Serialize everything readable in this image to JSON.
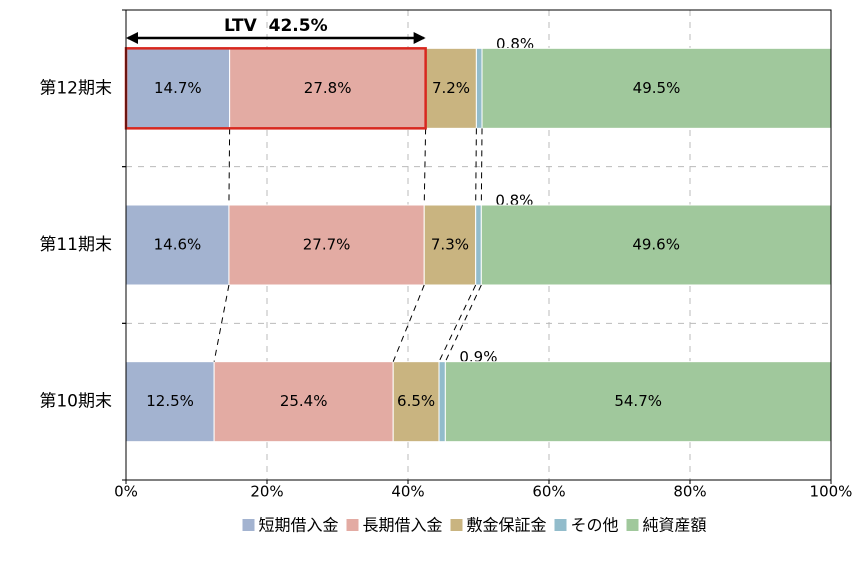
{
  "chart_data": {
    "type": "stacked_barh",
    "annotation": "LTV  42.5%",
    "categories": [
      "第12期末",
      "第11期末",
      "第10期末"
    ],
    "series": [
      {
        "name": "短期借入金",
        "color": "#a3b3d0",
        "values": [
          14.7,
          14.6,
          12.5
        ],
        "value_labels": [
          "14.7%",
          "14.6%",
          "12.5%"
        ]
      },
      {
        "name": "長期借入金",
        "color": "#e3aba3",
        "values": [
          27.8,
          27.7,
          25.4
        ],
        "value_labels": [
          "27.8%",
          "27.7%",
          "25.4%"
        ]
      },
      {
        "name": "敷金保証金",
        "color": "#c9b480",
        "values": [
          7.2,
          7.3,
          6.5
        ],
        "value_labels": [
          "7.2%",
          "7.3%",
          "6.5%"
        ]
      },
      {
        "name": "その他",
        "color": "#92bccb",
        "values": [
          0.8,
          0.8,
          0.9
        ],
        "value_labels": [
          "0.8%",
          "0.8%",
          "0.9%"
        ]
      },
      {
        "name": "純資産額",
        "color": "#a0c89c",
        "values": [
          49.5,
          49.6,
          54.7
        ],
        "value_labels": [
          "49.5%",
          "49.6%",
          "54.7%"
        ]
      }
    ],
    "xlim": [
      0,
      100
    ],
    "xticks": [
      {
        "value": 0,
        "label": "0%"
      },
      {
        "value": 20,
        "label": "20%"
      },
      {
        "value": 40,
        "label": "40%"
      },
      {
        "value": 60,
        "label": "60%"
      },
      {
        "value": 80,
        "label": "80%"
      },
      {
        "value": 100,
        "label": "100%"
      }
    ],
    "grid": true,
    "legend": "bottom"
  }
}
